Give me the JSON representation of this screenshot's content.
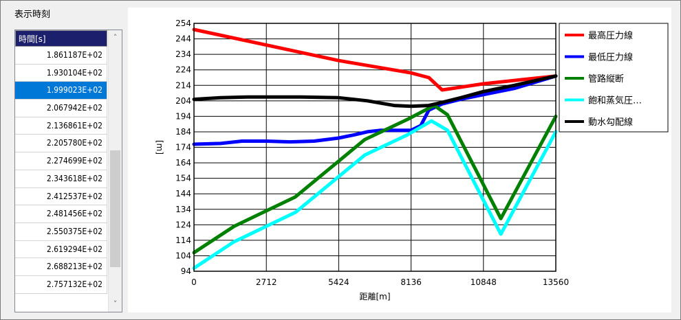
{
  "panel": {
    "title": "表示時刻"
  },
  "list": {
    "header": "時間[s]",
    "rows": [
      "1.861187E+02",
      "1.930104E+02",
      "1.999023E+02",
      "2.067942E+02",
      "2.136861E+02",
      "2.205780E+02",
      "2.274699E+02",
      "2.343618E+02",
      "2.412537E+02",
      "2.481456E+02",
      "2.550375E+02",
      "2.619294E+02",
      "2.688213E+02",
      "2.757132E+02"
    ],
    "selected_index": 2,
    "scroll_up_icon": "chevron-up-icon",
    "scroll_down_icon": "chevron-down-icon"
  },
  "chart_data": {
    "type": "line",
    "xlabel": "距離[m]",
    "ylabel": "[m]",
    "xlim": [
      0,
      13560
    ],
    "ylim": [
      94,
      254
    ],
    "xticks": [
      0,
      2712,
      5424,
      8136,
      10848,
      13560
    ],
    "yticks": [
      94,
      104,
      114,
      124,
      134,
      144,
      154,
      164,
      174,
      184,
      194,
      204,
      214,
      224,
      234,
      244,
      254
    ],
    "grid": true,
    "legend_position": "right",
    "series": [
      {
        "name": "最高圧力線",
        "color": "#ff0000",
        "x": [
          0,
          2712,
          5424,
          8136,
          8800,
          9300,
          10848,
          13560
        ],
        "y": [
          250,
          240,
          230,
          222,
          219,
          211,
          215,
          220
        ]
      },
      {
        "name": "最低圧力線",
        "color": "#0000ff",
        "x": [
          0,
          1000,
          1800,
          2712,
          3600,
          4500,
          5424,
          6000,
          6500,
          7000,
          7500,
          8136,
          8500,
          8800,
          9300,
          10000,
          10848,
          12000,
          13560
        ],
        "y": [
          176,
          176.5,
          178,
          178,
          177.5,
          178,
          180,
          182,
          184,
          185,
          185,
          185,
          188,
          198,
          202,
          205,
          208,
          212,
          220
        ]
      },
      {
        "name": "管路縦断",
        "color": "#008000",
        "x": [
          0,
          1500,
          3800,
          6400,
          8000,
          9000,
          9500,
          11500,
          13560
        ],
        "y": [
          106,
          123,
          142,
          179,
          192,
          201,
          195,
          128,
          194
        ]
      },
      {
        "name": "飽和蒸気圧…",
        "color": "#00ffff",
        "x": [
          0,
          1500,
          3800,
          6400,
          8000,
          8900,
          9500,
          11500,
          13560
        ],
        "y": [
          96,
          113,
          132,
          169,
          182,
          191,
          185,
          118,
          184
        ]
      },
      {
        "name": "動水勾配線",
        "color": "#000000",
        "x": [
          0,
          1000,
          2000,
          2712,
          4000,
          5424,
          6500,
          7500,
          8136,
          8800,
          9300,
          10000,
          10848,
          12000,
          13560
        ],
        "y": [
          205,
          206,
          206.5,
          206.5,
          206.5,
          206,
          204,
          201,
          200.5,
          201,
          203,
          206,
          210,
          214,
          220
        ]
      }
    ]
  }
}
